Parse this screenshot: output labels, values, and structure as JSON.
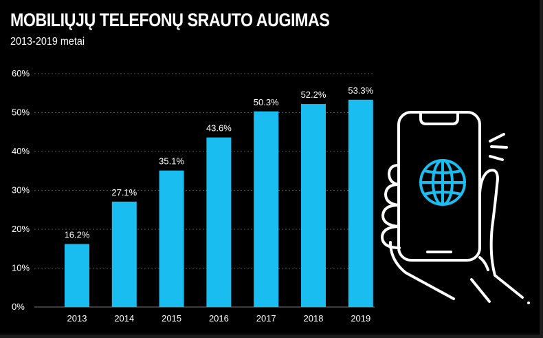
{
  "title": "MOBILIŲJŲ TELEFONŲ SRAUTO AUGIMAS",
  "subtitle": "2013-2019 metai",
  "colors": {
    "bar": "#19bdf0",
    "background": "#000000",
    "grid": "#555555",
    "icon_accent": "#19bdf0"
  },
  "icons": [
    "hand-holding-phone-icon",
    "globe-icon"
  ],
  "chart_data": {
    "type": "bar",
    "title": "MOBILIŲJŲ TELEFONŲ SRAUTO AUGIMAS",
    "subtitle": "2013-2019 metai",
    "categories": [
      "2013",
      "2014",
      "2015",
      "2016",
      "2017",
      "2018",
      "2019"
    ],
    "values": [
      16.2,
      27.1,
      35.1,
      43.6,
      50.3,
      52.2,
      53.3
    ],
    "value_labels": [
      "16.2%",
      "27.1%",
      "35.1%",
      "43.6%",
      "50.3%",
      "52.2%",
      "53.3%"
    ],
    "y_ticks": [
      0,
      10,
      20,
      30,
      40,
      50,
      60
    ],
    "y_tick_labels": [
      "0%",
      "10%",
      "20%",
      "30%",
      "40%",
      "50%",
      "60%"
    ],
    "ylim": [
      0,
      60
    ],
    "xlabel": "",
    "ylabel": "",
    "grid": true
  }
}
